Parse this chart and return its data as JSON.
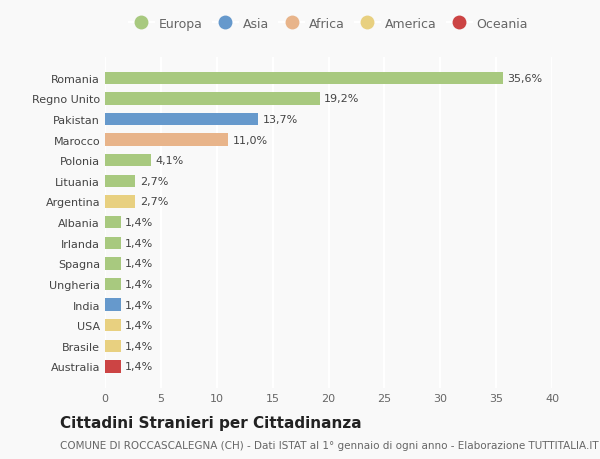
{
  "categories": [
    "Romania",
    "Regno Unito",
    "Pakistan",
    "Marocco",
    "Polonia",
    "Lituania",
    "Argentina",
    "Albania",
    "Irlanda",
    "Spagna",
    "Ungheria",
    "India",
    "USA",
    "Brasile",
    "Australia"
  ],
  "values": [
    35.6,
    19.2,
    13.7,
    11.0,
    4.1,
    2.7,
    2.7,
    1.4,
    1.4,
    1.4,
    1.4,
    1.4,
    1.4,
    1.4,
    1.4
  ],
  "labels": [
    "35,6%",
    "19,2%",
    "13,7%",
    "11,0%",
    "4,1%",
    "2,7%",
    "2,7%",
    "1,4%",
    "1,4%",
    "1,4%",
    "1,4%",
    "1,4%",
    "1,4%",
    "1,4%",
    "1,4%"
  ],
  "continents": [
    "Europa",
    "Europa",
    "Asia",
    "Africa",
    "Europa",
    "Europa",
    "America",
    "Europa",
    "Europa",
    "Europa",
    "Europa",
    "Asia",
    "America",
    "America",
    "Oceania"
  ],
  "continent_colors": {
    "Europa": "#a8c97f",
    "Asia": "#6699cc",
    "Africa": "#e8b48a",
    "America": "#e8d080",
    "Oceania": "#cc4444"
  },
  "legend_order": [
    "Europa",
    "Asia",
    "Africa",
    "America",
    "Oceania"
  ],
  "title": "Cittadini Stranieri per Cittadinanza",
  "subtitle": "COMUNE DI ROCCASCALEGNA (CH) - Dati ISTAT al 1° gennaio di ogni anno - Elaborazione TUTTITALIA.IT",
  "xlim": [
    0,
    40
  ],
  "xticks": [
    0,
    5,
    10,
    15,
    20,
    25,
    30,
    35,
    40
  ],
  "background_color": "#f9f9f9",
  "plot_bg_color": "#f9f9f9",
  "bar_height": 0.6,
  "grid_color": "#ffffff",
  "title_fontsize": 11,
  "subtitle_fontsize": 7.5,
  "label_fontsize": 8,
  "tick_fontsize": 8,
  "legend_fontsize": 9
}
